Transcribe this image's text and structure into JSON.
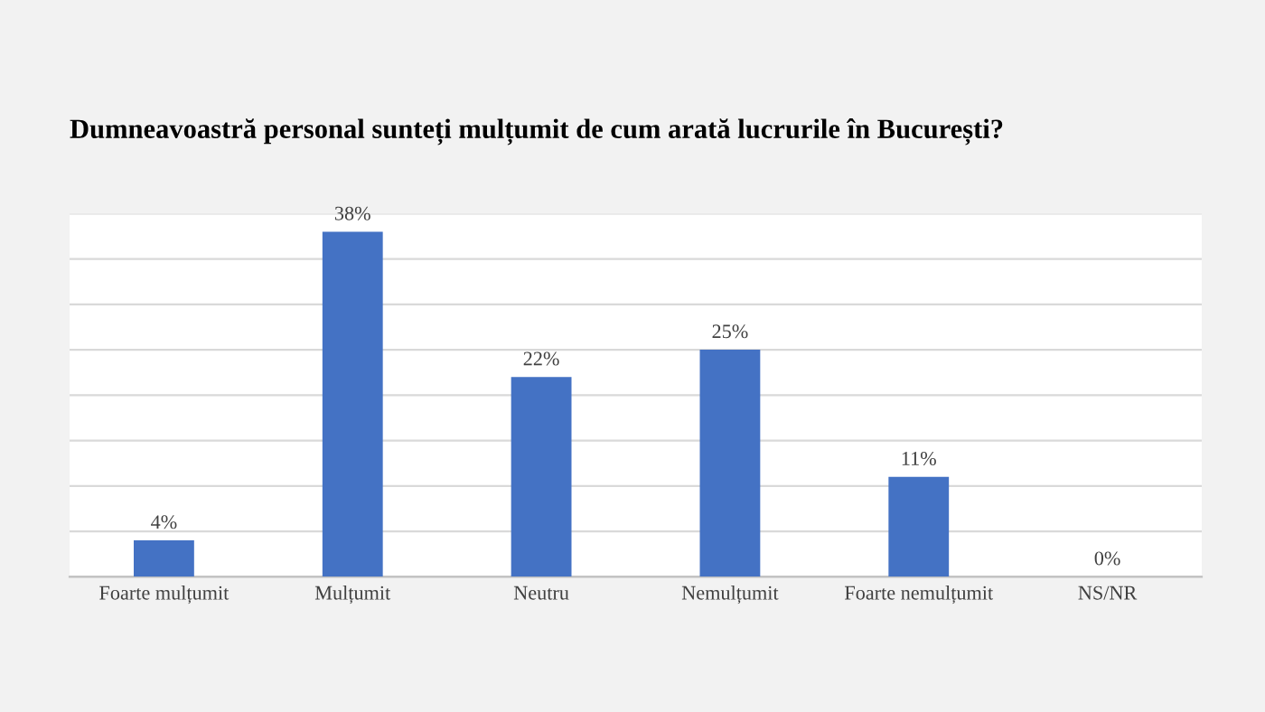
{
  "chart_data": {
    "type": "bar",
    "title": "Dumneavoastră personal sunteți mulțumit de cum arată lucrurile în București?",
    "categories": [
      "Foarte mulțumit",
      "Mulțumit",
      "Neutru",
      "Nemulțumit",
      "Foarte nemulțumit",
      "NS/NR"
    ],
    "values": [
      4,
      38,
      22,
      25,
      11,
      0
    ],
    "value_labels": [
      "4%",
      "38%",
      "22%",
      "25%",
      "11%",
      "0%"
    ],
    "color": "#4472c4",
    "ylim": [
      0,
      40
    ],
    "yticks": [
      {
        "value": 0,
        "label": null
      },
      {
        "value": 5,
        "label": null
      },
      {
        "value": 10,
        "label": null
      },
      {
        "value": 15,
        "label": null
      },
      {
        "value": 20,
        "label": null
      },
      {
        "value": 25,
        "label": null
      },
      {
        "value": 30,
        "label": null
      },
      {
        "value": 35,
        "label": null
      },
      {
        "value": 40,
        "label": null
      }
    ],
    "tick_labels": "x",
    "grid": "y",
    "legend": false
  }
}
